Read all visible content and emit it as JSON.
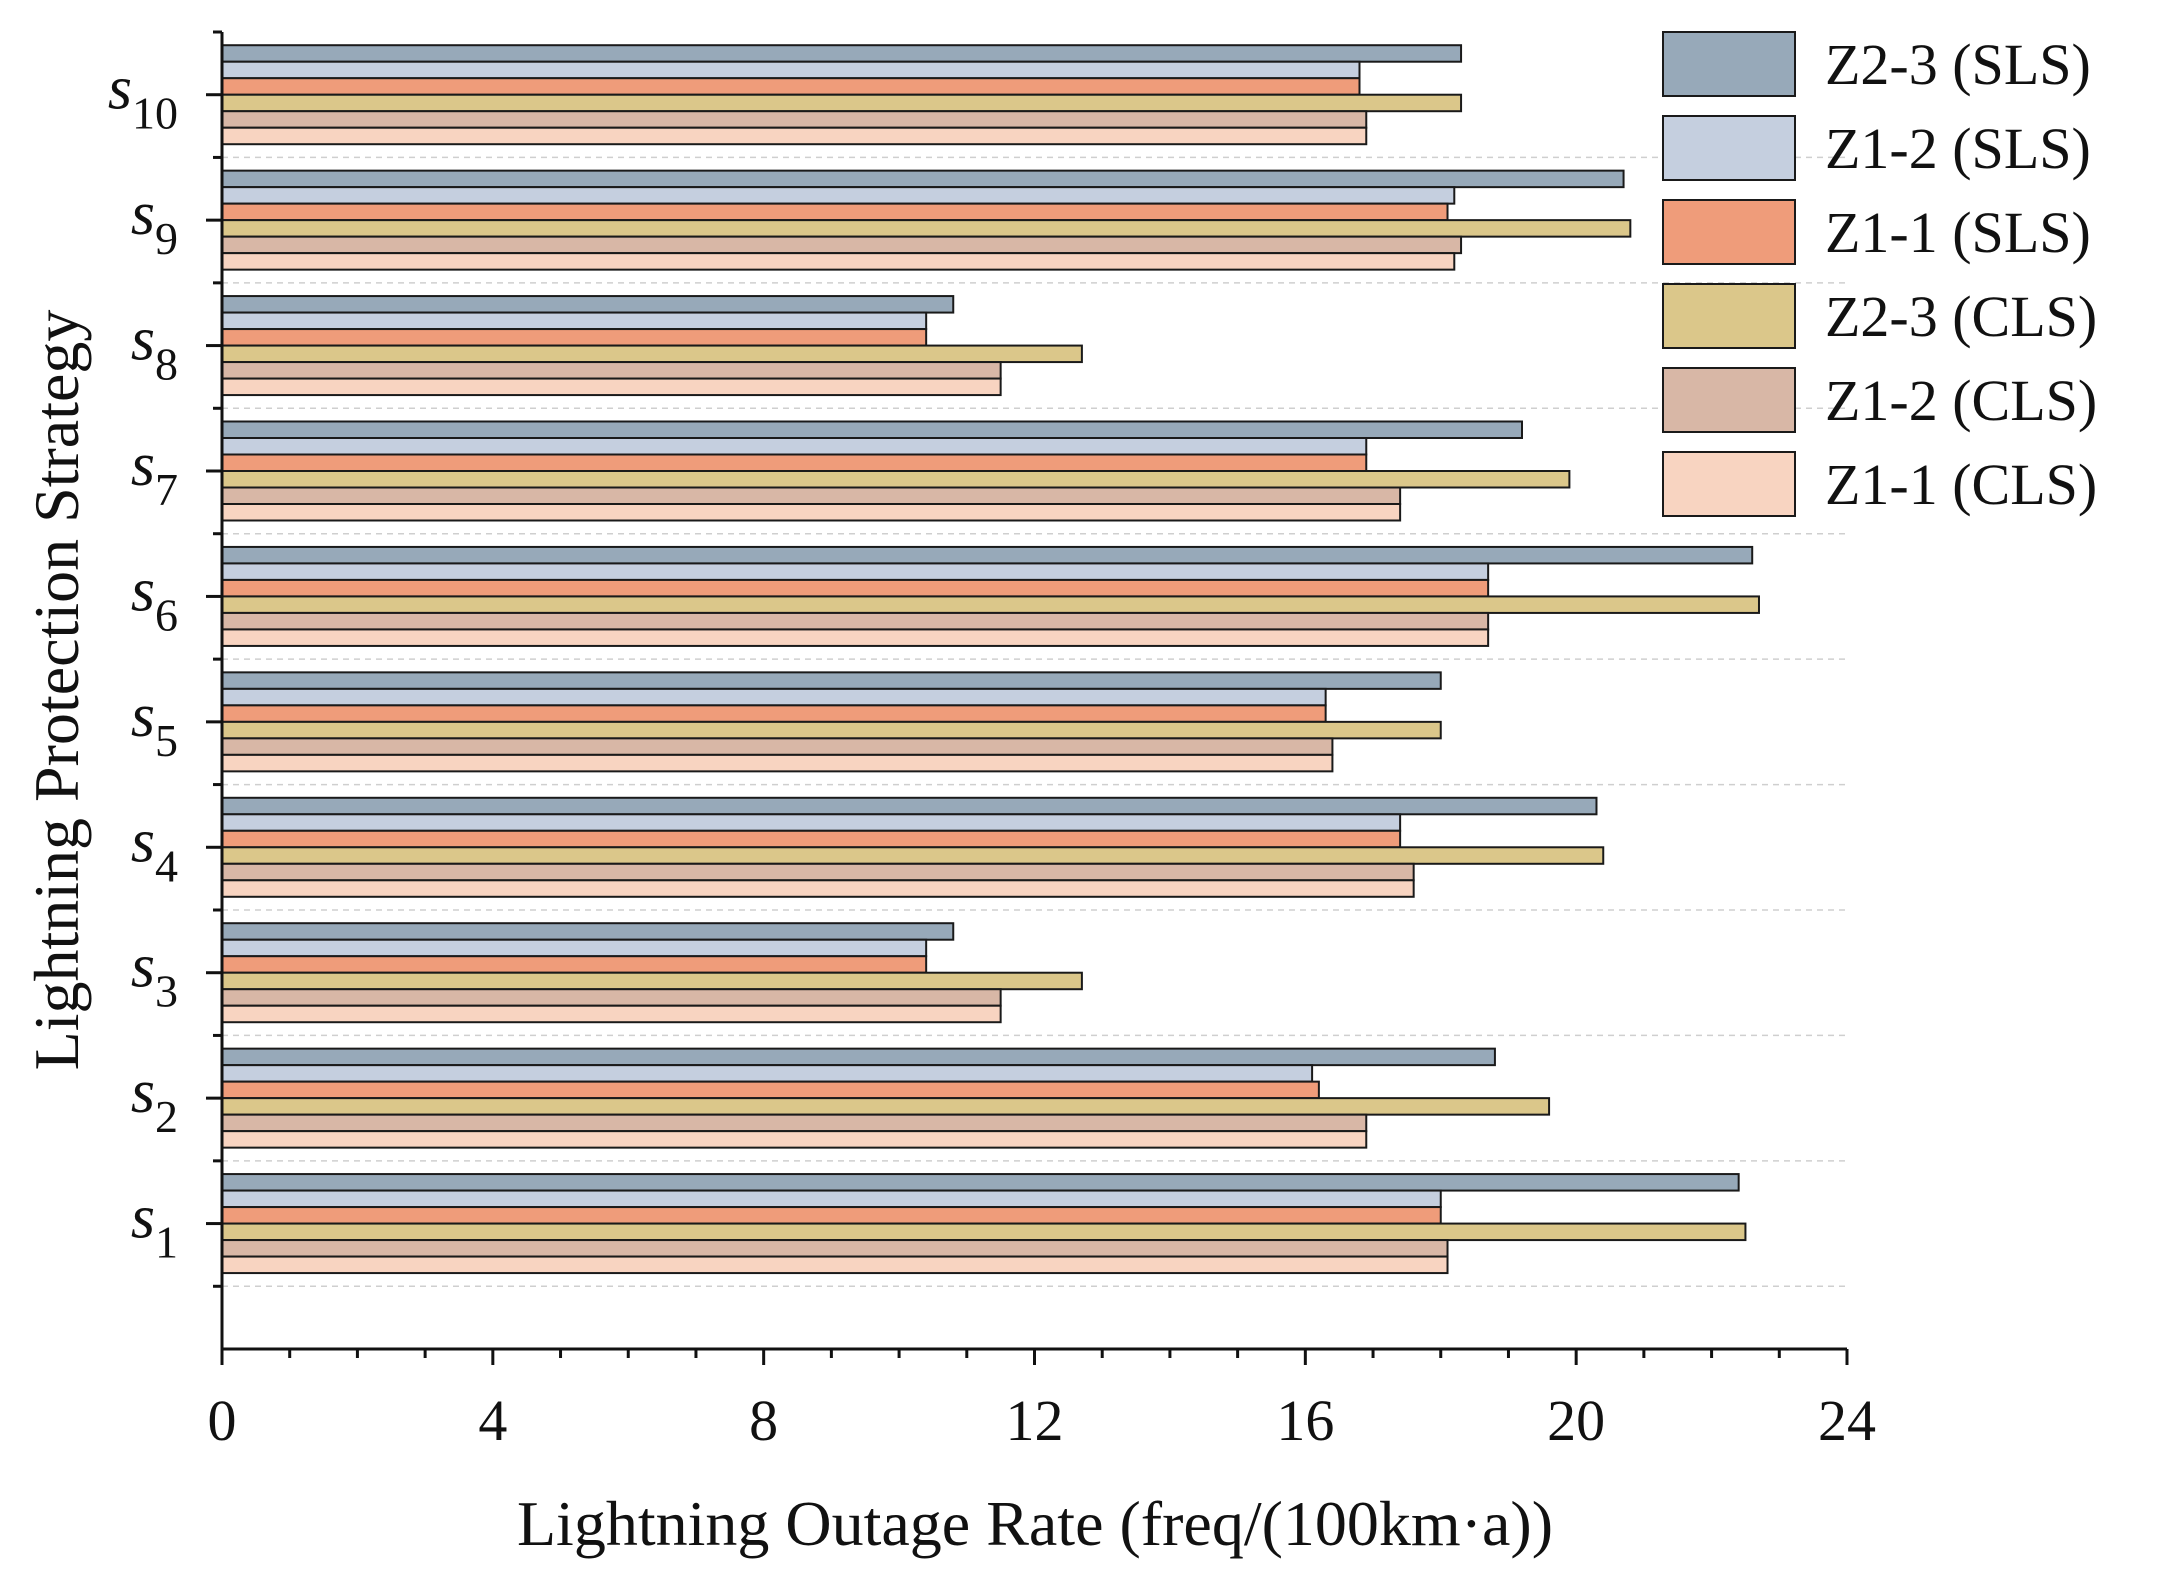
{
  "chart_data": {
    "type": "bar",
    "orientation": "horizontal",
    "title": "",
    "xlabel": "Lightning Outage Rate (freq/(100km·a))",
    "ylabel": "Lightning Protection Strategy",
    "xlim": [
      0,
      24
    ],
    "xticks": [
      0,
      4,
      8,
      12,
      16,
      20,
      24
    ],
    "xtick_labels": [
      "0",
      "4",
      "8",
      "12",
      "16",
      "20",
      "24"
    ],
    "categories": [
      "s1",
      "s2",
      "s3",
      "s4",
      "s5",
      "s6",
      "s7",
      "s8",
      "s9",
      "s10"
    ],
    "category_labels": [
      {
        "base": "s",
        "sub": "1"
      },
      {
        "base": "s",
        "sub": "2"
      },
      {
        "base": "s",
        "sub": "3"
      },
      {
        "base": "s",
        "sub": "4"
      },
      {
        "base": "s",
        "sub": "5"
      },
      {
        "base": "s",
        "sub": "6"
      },
      {
        "base": "s",
        "sub": "7"
      },
      {
        "base": "s",
        "sub": "8"
      },
      {
        "base": "s",
        "sub": "9"
      },
      {
        "base": "s",
        "sub": "10"
      }
    ],
    "legend_position": "top-right",
    "grid": "dashed horizontal",
    "series": [
      {
        "name": "Z2-3 (SLS)",
        "color": "#97a9b9",
        "values": [
          22.4,
          18.8,
          10.8,
          20.3,
          18.0,
          22.6,
          19.2,
          10.8,
          20.7,
          18.3
        ]
      },
      {
        "name": "Z1-2 (SLS)",
        "color": "#c5cfdf",
        "values": [
          18.0,
          16.1,
          10.4,
          17.4,
          16.3,
          18.7,
          16.9,
          10.4,
          18.2,
          16.8
        ]
      },
      {
        "name": "Z1-1 (SLS)",
        "color": "#ef9c7a",
        "values": [
          18.0,
          16.2,
          10.4,
          17.4,
          16.3,
          18.7,
          16.9,
          10.4,
          18.1,
          16.8
        ]
      },
      {
        "name": "Z2-3 (CLS)",
        "color": "#dbc78a",
        "values": [
          22.5,
          19.6,
          12.7,
          20.4,
          18.0,
          22.7,
          19.9,
          12.7,
          20.8,
          18.3
        ]
      },
      {
        "name": "Z1-2 (CLS)",
        "color": "#d8b7a6",
        "values": [
          18.1,
          16.9,
          11.5,
          17.6,
          16.4,
          18.7,
          17.4,
          11.5,
          18.3,
          16.9
        ]
      },
      {
        "name": "Z1-1 (CLS)",
        "color": "#f8d4c1",
        "values": [
          18.1,
          16.9,
          11.5,
          17.6,
          16.4,
          18.7,
          17.4,
          11.5,
          18.2,
          16.9
        ]
      }
    ]
  }
}
